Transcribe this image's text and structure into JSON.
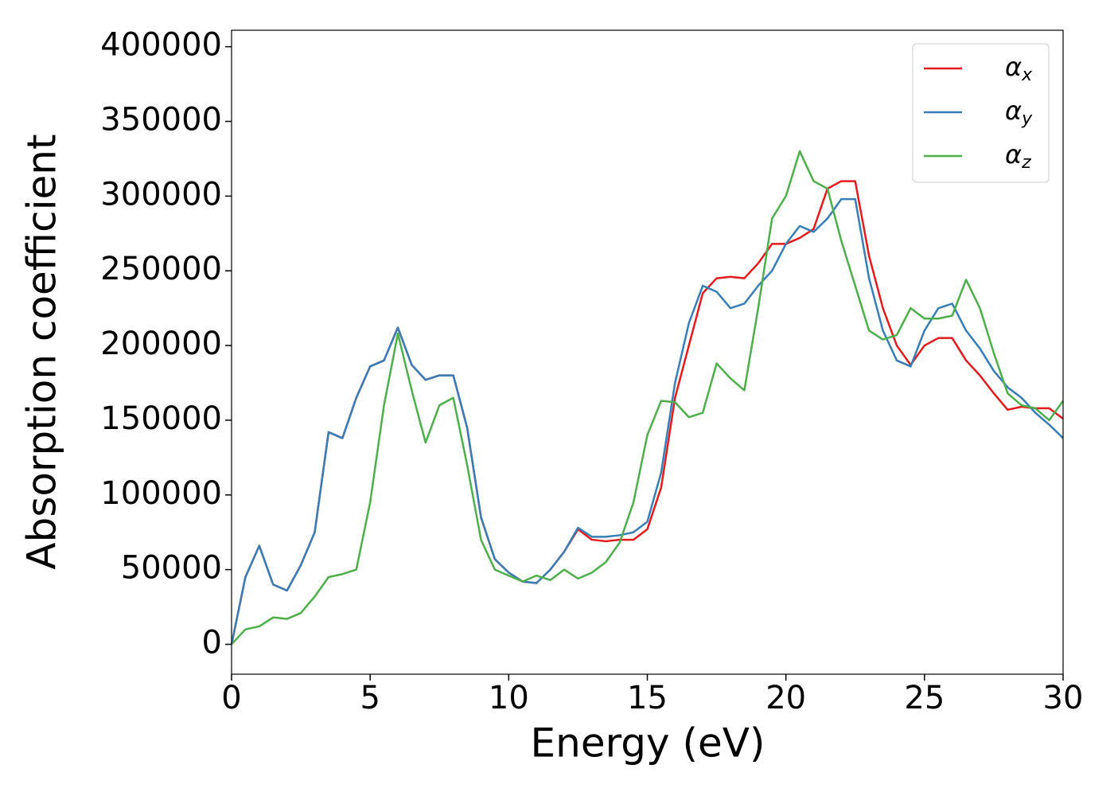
{
  "chart_data": {
    "type": "line",
    "xlabel": "Energy (eV)",
    "ylabel": "Absorption coefficient",
    "x": [
      0,
      0.5,
      1,
      1.5,
      2,
      2.5,
      3,
      3.5,
      4,
      4.5,
      5,
      5.5,
      6,
      6.5,
      7,
      7.5,
      8,
      8.5,
      9,
      9.5,
      10,
      10.5,
      11,
      11.5,
      12,
      12.5,
      13,
      13.5,
      14,
      14.5,
      15,
      15.5,
      16,
      16.5,
      17,
      17.5,
      18,
      18.5,
      19,
      19.5,
      20,
      20.5,
      21,
      21.5,
      22,
      22.5,
      23,
      23.5,
      24,
      24.5,
      25,
      25.5,
      26,
      26.5,
      27,
      27.5,
      28,
      28.5,
      29,
      29.5,
      30
    ],
    "series": [
      {
        "name": "αx",
        "color": "#e41a1c",
        "values": [
          0,
          45000,
          66000,
          40000,
          36000,
          53000,
          75000,
          142000,
          138000,
          165000,
          186000,
          190000,
          212000,
          187000,
          177000,
          180000,
          180000,
          145000,
          85000,
          57000,
          48000,
          42000,
          41000,
          50000,
          62000,
          77000,
          70000,
          69000,
          70000,
          70000,
          77000,
          105000,
          165000,
          200000,
          235000,
          245000,
          246000,
          245000,
          255000,
          268000,
          268000,
          272000,
          278000,
          305000,
          310000,
          310000,
          260000,
          225000,
          200000,
          187000,
          200000,
          205000,
          205000,
          190000,
          180000,
          168000,
          157000,
          159000,
          158000,
          158000,
          151000
        ]
      },
      {
        "name": "αy",
        "color": "#377eb8",
        "values": [
          0,
          45000,
          66000,
          40000,
          36000,
          53000,
          75000,
          142000,
          138000,
          165000,
          186000,
          190000,
          212000,
          187000,
          177000,
          180000,
          180000,
          145000,
          85000,
          57000,
          48000,
          42000,
          41000,
          50000,
          62000,
          78000,
          72000,
          72000,
          73000,
          75000,
          82000,
          115000,
          175000,
          215000,
          240000,
          236000,
          225000,
          228000,
          240000,
          250000,
          268000,
          280000,
          276000,
          285000,
          298000,
          298000,
          245000,
          210000,
          190000,
          186000,
          210000,
          225000,
          228000,
          210000,
          198000,
          183000,
          172000,
          165000,
          155000,
          147000,
          138000
        ]
      },
      {
        "name": "αz",
        "color": "#4daf4a",
        "values": [
          0,
          10000,
          12000,
          18000,
          17000,
          21000,
          32000,
          45000,
          47000,
          50000,
          95000,
          160000,
          208000,
          170000,
          135000,
          160000,
          165000,
          120000,
          70000,
          50000,
          46000,
          42000,
          46000,
          43000,
          50000,
          44000,
          48000,
          55000,
          68000,
          95000,
          140000,
          163000,
          162000,
          152000,
          155000,
          188000,
          178000,
          170000,
          225000,
          285000,
          300000,
          330000,
          310000,
          305000,
          270000,
          240000,
          210000,
          204000,
          207000,
          225000,
          218000,
          218000,
          220000,
          244000,
          225000,
          195000,
          168000,
          160000,
          158000,
          150000,
          163000
        ]
      }
    ],
    "xlim": [
      0,
      30
    ],
    "xticks": [
      0,
      5,
      10,
      15,
      20,
      25,
      30
    ],
    "ylim": [
      -20000,
      411000
    ],
    "yticks": [
      0,
      50000,
      100000,
      150000,
      200000,
      250000,
      300000,
      350000,
      400000
    ],
    "legend": "upper right"
  }
}
